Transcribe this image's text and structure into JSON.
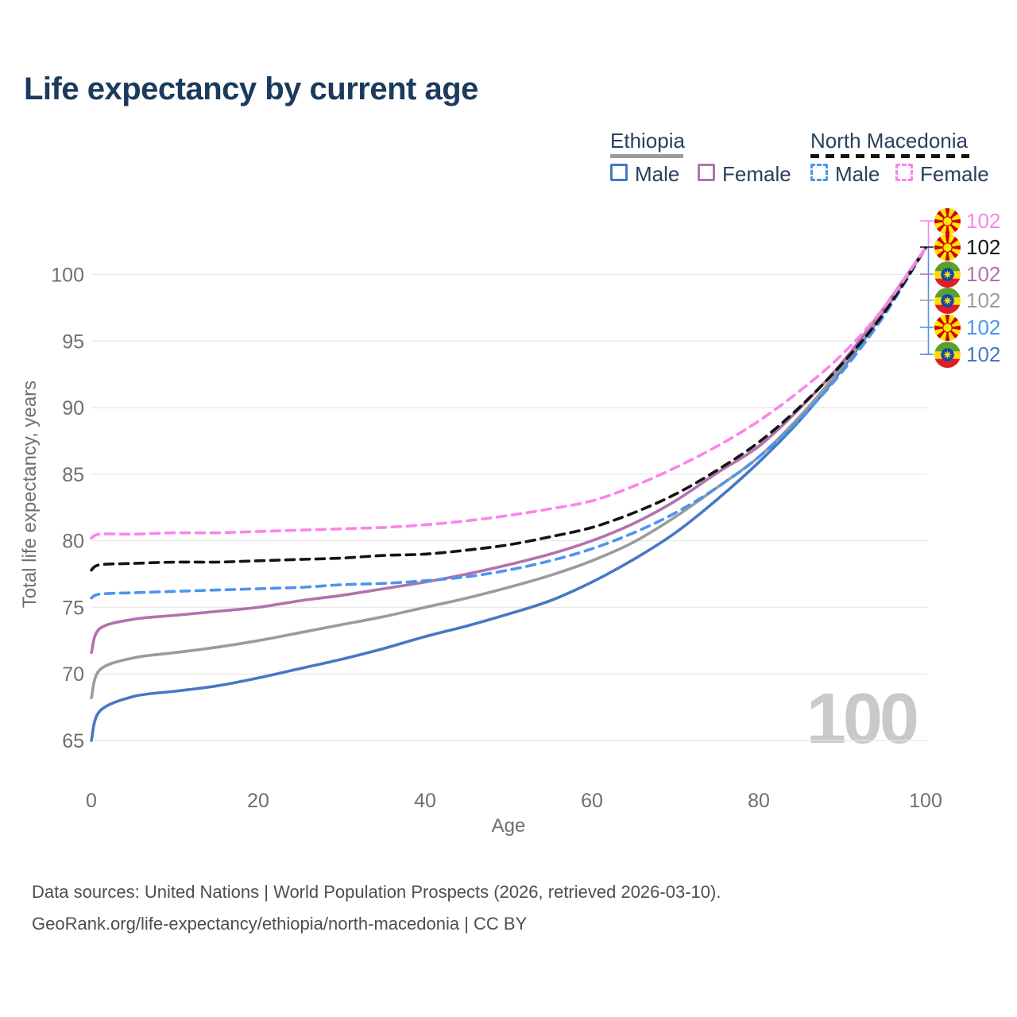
{
  "title": "Life expectancy by current age",
  "legend": {
    "ethiopia": {
      "label": "Ethiopia",
      "style": "solid",
      "underline_color": "#9b9b9b",
      "male_label": "Male",
      "male_color": "#4678c4",
      "female_label": "Female",
      "female_color": "#b172ae"
    },
    "north_macedonia": {
      "label": "North Macedonia",
      "style": "dashed",
      "underline_color": "#141414",
      "male_label": "Male",
      "male_color": "#4c94f1",
      "female_label": "Female",
      "female_color": "#fb84ea"
    }
  },
  "watermark": "100",
  "footer": {
    "line1": "Data sources: United Nations | World Population Prospects (2026, retrieved 2026-03-10).",
    "line2": "GeoRank.org/life-expectancy/ethiopia/north-macedonia | CC BY"
  },
  "chart_data": {
    "type": "line",
    "title": "Life expectancy by current age",
    "xlabel": "Age",
    "ylabel": "Total life expectancy, years",
    "xlim": [
      0,
      100
    ],
    "ylim": [
      65,
      102
    ],
    "x_ticks": [
      0,
      20,
      40,
      60,
      80,
      100
    ],
    "y_ticks": [
      65,
      70,
      75,
      80,
      85,
      90,
      95,
      100
    ],
    "grid": true,
    "legend_position": "top-right",
    "tick_color": "#6f6f6f",
    "grid_color": "#e8e8e8",
    "ages": [
      0,
      1,
      5,
      10,
      15,
      20,
      25,
      30,
      35,
      40,
      45,
      50,
      55,
      60,
      65,
      70,
      75,
      80,
      85,
      90,
      95,
      100
    ],
    "series": [
      {
        "name": "Ethiopia Male",
        "country": "Ethiopia",
        "sex": "male",
        "color": "#4678c4",
        "dashed": false,
        "flag": "ethiopia-flag-icon",
        "end_label": "102",
        "end_row": 5,
        "values": [
          65.0,
          67.2,
          68.3,
          68.7,
          69.1,
          69.7,
          70.4,
          71.1,
          71.9,
          72.8,
          73.6,
          74.5,
          75.5,
          76.9,
          78.6,
          80.6,
          83.1,
          85.9,
          89.1,
          92.9,
          97.2,
          102
        ]
      },
      {
        "name": "Ethiopia Total",
        "country": "Ethiopia",
        "sex": "total",
        "color": "#9b9b9b",
        "dashed": false,
        "flag": "ethiopia-flag-icon",
        "end_label": "102",
        "end_row": 3,
        "values": [
          68.2,
          70.3,
          71.2,
          71.6,
          72.0,
          72.5,
          73.1,
          73.7,
          74.3,
          75.0,
          75.7,
          76.5,
          77.4,
          78.5,
          79.9,
          81.8,
          84.0,
          86.3,
          89.4,
          93.1,
          97.3,
          102
        ]
      },
      {
        "name": "Ethiopia Female",
        "country": "Ethiopia",
        "sex": "female",
        "color": "#b172ae",
        "dashed": false,
        "flag": "ethiopia-flag-icon",
        "end_label": "102",
        "end_row": 2,
        "values": [
          71.6,
          73.4,
          74.1,
          74.4,
          74.7,
          75.0,
          75.5,
          75.9,
          76.4,
          76.9,
          77.5,
          78.2,
          79.0,
          80.0,
          81.3,
          83.0,
          85.1,
          87.1,
          90.0,
          93.4,
          97.5,
          102
        ]
      },
      {
        "name": "North Macedonia Male",
        "country": "North Macedonia",
        "sex": "male",
        "color": "#4c94f1",
        "dashed": true,
        "flag": "north-macedonia-flag-icon",
        "end_label": "102",
        "end_row": 4,
        "values": [
          75.7,
          76.0,
          76.1,
          76.2,
          76.3,
          76.4,
          76.5,
          76.7,
          76.8,
          77.0,
          77.3,
          77.8,
          78.5,
          79.4,
          80.6,
          82.1,
          84.0,
          86.3,
          89.2,
          92.7,
          96.9,
          102
        ]
      },
      {
        "name": "North Macedonia Total",
        "country": "North Macedonia",
        "sex": "total",
        "color": "#141414",
        "dashed": true,
        "flag": "north-macedonia-flag-icon",
        "end_label": "102",
        "end_row": 1,
        "values": [
          77.8,
          78.2,
          78.3,
          78.4,
          78.4,
          78.5,
          78.6,
          78.7,
          78.9,
          79.0,
          79.3,
          79.7,
          80.3,
          81.0,
          82.1,
          83.5,
          85.3,
          87.4,
          90.1,
          93.3,
          97.1,
          102
        ]
      },
      {
        "name": "North Macedonia Female",
        "country": "North Macedonia",
        "sex": "female",
        "color": "#fb84ea",
        "dashed": true,
        "flag": "north-macedonia-flag-icon",
        "end_label": "102",
        "end_row": 0,
        "values": [
          80.2,
          80.5,
          80.5,
          80.6,
          80.6,
          80.7,
          80.8,
          80.9,
          81.0,
          81.2,
          81.5,
          81.9,
          82.4,
          83.0,
          84.1,
          85.5,
          87.1,
          89.0,
          91.3,
          94.0,
          97.5,
          102
        ]
      }
    ]
  }
}
